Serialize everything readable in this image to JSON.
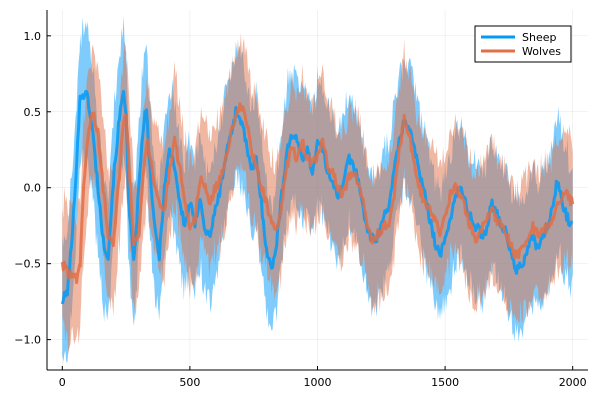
{
  "chart_data": {
    "type": "line",
    "title": "",
    "xlabel": "",
    "ylabel": "",
    "xlim": [
      -60,
      2060
    ],
    "ylim": [
      -1.2,
      1.17
    ],
    "x_ticks": [
      0,
      500,
      1000,
      1500,
      2000
    ],
    "x_tick_labels": [
      "0",
      "500",
      "1000",
      "1500",
      "2000"
    ],
    "y_ticks": [
      -1.0,
      -0.5,
      0.0,
      0.5,
      1.0
    ],
    "y_tick_labels": [
      "−1.0",
      "−0.5",
      "0.0",
      "0.5",
      "1.0"
    ],
    "grid": true,
    "legend_position": "top-right",
    "series": [
      {
        "name": "Sheep",
        "color": "#009af9",
        "band_opacity": 0.5,
        "band_halfwidth": 0.42,
        "x": [
          0,
          20,
          40,
          60,
          70,
          80,
          100,
          120,
          140,
          160,
          180,
          200,
          220,
          240,
          250,
          260,
          280,
          300,
          320,
          330,
          340,
          360,
          380,
          400,
          420,
          440,
          460,
          480,
          500,
          520,
          540,
          560,
          580,
          600,
          620,
          640,
          660,
          680,
          700,
          720,
          740,
          760,
          780,
          800,
          820,
          840,
          860,
          880,
          900,
          920,
          940,
          960,
          980,
          1000,
          1020,
          1040,
          1060,
          1080,
          1100,
          1120,
          1140,
          1160,
          1180,
          1200,
          1220,
          1240,
          1260,
          1280,
          1300,
          1320,
          1340,
          1360,
          1380,
          1400,
          1420,
          1440,
          1460,
          1480,
          1500,
          1520,
          1540,
          1560,
          1580,
          1600,
          1620,
          1640,
          1660,
          1680,
          1700,
          1720,
          1740,
          1760,
          1780,
          1800,
          1820,
          1840,
          1860,
          1880,
          1900,
          1920,
          1940,
          1960,
          1980,
          2000
        ],
        "y": [
          -0.75,
          -0.68,
          -0.3,
          0.3,
          0.6,
          0.62,
          0.6,
          0.35,
          0.0,
          -0.35,
          -0.45,
          0.05,
          0.4,
          0.65,
          0.5,
          -0.1,
          -0.5,
          0.0,
          0.45,
          0.5,
          0.2,
          -0.25,
          -0.45,
          0.0,
          0.25,
          0.15,
          -0.1,
          -0.25,
          -0.1,
          -0.25,
          -0.05,
          -0.3,
          -0.3,
          -0.15,
          0.0,
          0.2,
          0.35,
          0.5,
          0.45,
          0.3,
          0.1,
          0.2,
          -0.1,
          -0.4,
          -0.55,
          -0.35,
          -0.05,
          0.25,
          0.35,
          0.3,
          0.2,
          0.25,
          0.1,
          0.3,
          0.25,
          0.1,
          0.05,
          -0.05,
          0.0,
          0.2,
          0.15,
          0.05,
          -0.15,
          -0.3,
          -0.35,
          -0.3,
          -0.2,
          -0.1,
          0.1,
          0.3,
          0.45,
          0.4,
          0.25,
          0.1,
          -0.05,
          -0.2,
          -0.35,
          -0.45,
          -0.35,
          -0.2,
          -0.05,
          0.0,
          -0.1,
          -0.2,
          -0.25,
          -0.3,
          -0.3,
          -0.1,
          -0.15,
          -0.25,
          -0.3,
          -0.45,
          -0.55,
          -0.5,
          -0.45,
          -0.3,
          -0.4,
          -0.35,
          -0.25,
          -0.15,
          0.05,
          -0.1,
          -0.2,
          -0.25
        ]
      },
      {
        "name": "Wolves",
        "color": "#e26f46",
        "band_opacity": 0.5,
        "band_halfwidth": 0.42,
        "x": [
          0,
          20,
          40,
          60,
          70,
          80,
          100,
          120,
          140,
          160,
          180,
          200,
          220,
          240,
          250,
          260,
          280,
          300,
          320,
          330,
          340,
          360,
          380,
          400,
          420,
          440,
          460,
          480,
          500,
          520,
          540,
          560,
          580,
          600,
          620,
          640,
          660,
          680,
          700,
          720,
          740,
          760,
          780,
          800,
          820,
          840,
          860,
          880,
          900,
          920,
          940,
          960,
          980,
          1000,
          1020,
          1040,
          1060,
          1080,
          1100,
          1120,
          1140,
          1160,
          1180,
          1200,
          1220,
          1240,
          1260,
          1280,
          1300,
          1320,
          1340,
          1360,
          1380,
          1400,
          1420,
          1440,
          1460,
          1480,
          1500,
          1520,
          1540,
          1560,
          1580,
          1600,
          1620,
          1640,
          1660,
          1680,
          1700,
          1720,
          1740,
          1760,
          1780,
          1800,
          1820,
          1840,
          1860,
          1880,
          1900,
          1920,
          1940,
          1960,
          1980,
          2000
        ],
        "y": [
          -0.5,
          -0.55,
          -0.6,
          -0.6,
          -0.5,
          -0.1,
          0.35,
          0.5,
          0.35,
          0.0,
          -0.3,
          -0.35,
          0.0,
          0.45,
          0.45,
          0.2,
          -0.35,
          -0.3,
          0.15,
          0.3,
          0.25,
          0.05,
          -0.1,
          -0.15,
          0.1,
          0.3,
          0.15,
          -0.1,
          -0.25,
          -0.2,
          0.05,
          0.0,
          -0.1,
          0.0,
          0.05,
          0.2,
          0.35,
          0.45,
          0.55,
          0.45,
          0.25,
          0.15,
          0.0,
          -0.1,
          -0.25,
          -0.3,
          -0.1,
          0.15,
          0.25,
          0.2,
          0.3,
          0.2,
          0.15,
          0.2,
          0.3,
          0.15,
          0.1,
          0.0,
          -0.05,
          0.05,
          0.1,
          0.05,
          -0.1,
          -0.3,
          -0.35,
          -0.3,
          -0.25,
          -0.25,
          -0.05,
          0.25,
          0.45,
          0.35,
          0.15,
          0.0,
          -0.1,
          -0.15,
          -0.2,
          -0.3,
          -0.2,
          -0.05,
          0.0,
          -0.05,
          -0.15,
          -0.25,
          -0.35,
          -0.3,
          -0.2,
          -0.15,
          -0.2,
          -0.25,
          -0.3,
          -0.4,
          -0.45,
          -0.4,
          -0.35,
          -0.25,
          -0.3,
          -0.3,
          -0.25,
          -0.2,
          -0.1,
          -0.05,
          -0.05,
          -0.1
        ]
      }
    ]
  }
}
